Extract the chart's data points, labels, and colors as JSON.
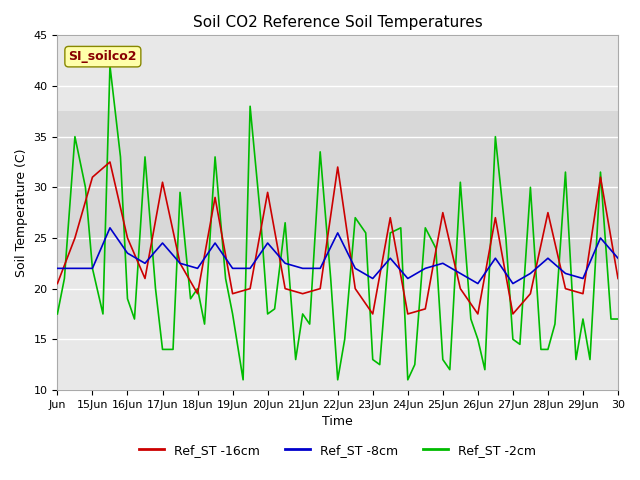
{
  "title": "Soil CO2 Reference Soil Temperatures",
  "xlabel": "Time",
  "ylabel": "Soil Temperature (C)",
  "xlim_start": 0,
  "xlim_end": 16,
  "ylim": [
    10,
    45
  ],
  "yticks": [
    10,
    15,
    20,
    25,
    30,
    35,
    40,
    45
  ],
  "xtick_labels": [
    "Jun",
    "15Jun",
    "16Jun",
    "17Jun",
    "18Jun",
    "19Jun",
    "20Jun",
    "21Jun",
    "22Jun",
    "23Jun",
    "24Jun",
    "25Jun",
    "26Jun",
    "27Jun",
    "28Jun",
    "29Jun",
    "30"
  ],
  "background_color": "#ffffff",
  "plot_bg_color": "#e8e8e8",
  "shaded_region": [
    22.5,
    37.5
  ],
  "shaded_color": "#d8d8d8",
  "grid_color": "#ffffff",
  "legend_labels": [
    "Ref_ST -16cm",
    "Ref_ST -8cm",
    "Ref_ST -2cm"
  ],
  "line_colors": [
    "#cc0000",
    "#0000cc",
    "#00bb00"
  ],
  "annotation_text": "SI_soilco2",
  "annotation_color": "#880000",
  "annotation_bg": "#ffffaa",
  "ref16_x": [
    0,
    0.5,
    1,
    1.5,
    2,
    2.5,
    3,
    3.5,
    4,
    4.5,
    5,
    5.5,
    6,
    6.5,
    7,
    7.5,
    8,
    8.5,
    9,
    9.5,
    10,
    10.5,
    11,
    11.5,
    12,
    12.5,
    13,
    13.5,
    14,
    14.5,
    15,
    15.5,
    16
  ],
  "ref16_y": [
    20.5,
    25.0,
    31.0,
    32.5,
    25.0,
    21.0,
    30.5,
    22.5,
    19.5,
    29.0,
    19.5,
    20.0,
    29.5,
    20.0,
    19.5,
    20.0,
    32.0,
    20.0,
    17.5,
    27.0,
    17.5,
    18.0,
    27.5,
    20.0,
    17.5,
    27.0,
    17.5,
    19.5,
    27.5,
    20.0,
    19.5,
    31.0,
    21.0
  ],
  "ref8_x": [
    0,
    0.5,
    1,
    1.5,
    2,
    2.5,
    3,
    3.5,
    4,
    4.5,
    5,
    5.5,
    6,
    6.5,
    7,
    7.5,
    8,
    8.5,
    9,
    9.5,
    10,
    10.5,
    11,
    11.5,
    12,
    12.5,
    13,
    13.5,
    14,
    14.5,
    15,
    15.5,
    16
  ],
  "ref8_y": [
    22.0,
    22.0,
    22.0,
    26.0,
    23.5,
    22.5,
    24.5,
    22.5,
    22.0,
    24.5,
    22.0,
    22.0,
    24.5,
    22.5,
    22.0,
    22.0,
    25.5,
    22.0,
    21.0,
    23.0,
    21.0,
    22.0,
    22.5,
    21.5,
    20.5,
    23.0,
    20.5,
    21.5,
    23.0,
    21.5,
    21.0,
    25.0,
    23.0
  ],
  "ref2_x": [
    0,
    0.2,
    0.5,
    0.8,
    1.0,
    1.3,
    1.5,
    1.8,
    2.0,
    2.2,
    2.5,
    2.8,
    3.0,
    3.3,
    3.5,
    3.8,
    4.0,
    4.2,
    4.5,
    4.8,
    5.0,
    5.3,
    5.5,
    5.8,
    6.0,
    6.2,
    6.5,
    6.8,
    7.0,
    7.2,
    7.5,
    7.8,
    8.0,
    8.2,
    8.5,
    8.8,
    9.0,
    9.2,
    9.5,
    9.8,
    10.0,
    10.2,
    10.5,
    10.8,
    11.0,
    11.2,
    11.5,
    11.8,
    12.0,
    12.2,
    12.5,
    12.8,
    13.0,
    13.2,
    13.5,
    13.8,
    14.0,
    14.2,
    14.5,
    14.8,
    15.0,
    15.2,
    15.5,
    15.8,
    16.0
  ],
  "ref2_y": [
    17.5,
    21.0,
    35.0,
    30.0,
    22.0,
    17.5,
    42.0,
    33.0,
    19.0,
    17.0,
    33.0,
    20.0,
    14.0,
    14.0,
    29.5,
    19.0,
    20.0,
    16.5,
    33.0,
    21.0,
    17.5,
    11.0,
    38.0,
    27.0,
    17.5,
    18.0,
    26.5,
    13.0,
    17.5,
    16.5,
    33.5,
    21.0,
    11.0,
    15.0,
    27.0,
    25.5,
    13.0,
    12.5,
    25.5,
    26.0,
    11.0,
    12.5,
    26.0,
    24.0,
    13.0,
    12.0,
    30.5,
    17.0,
    15.0,
    12.0,
    35.0,
    25.0,
    15.0,
    14.5,
    30.0,
    14.0,
    14.0,
    16.5,
    31.5,
    13.0,
    17.0,
    13.0,
    31.5,
    17.0,
    17.0
  ]
}
